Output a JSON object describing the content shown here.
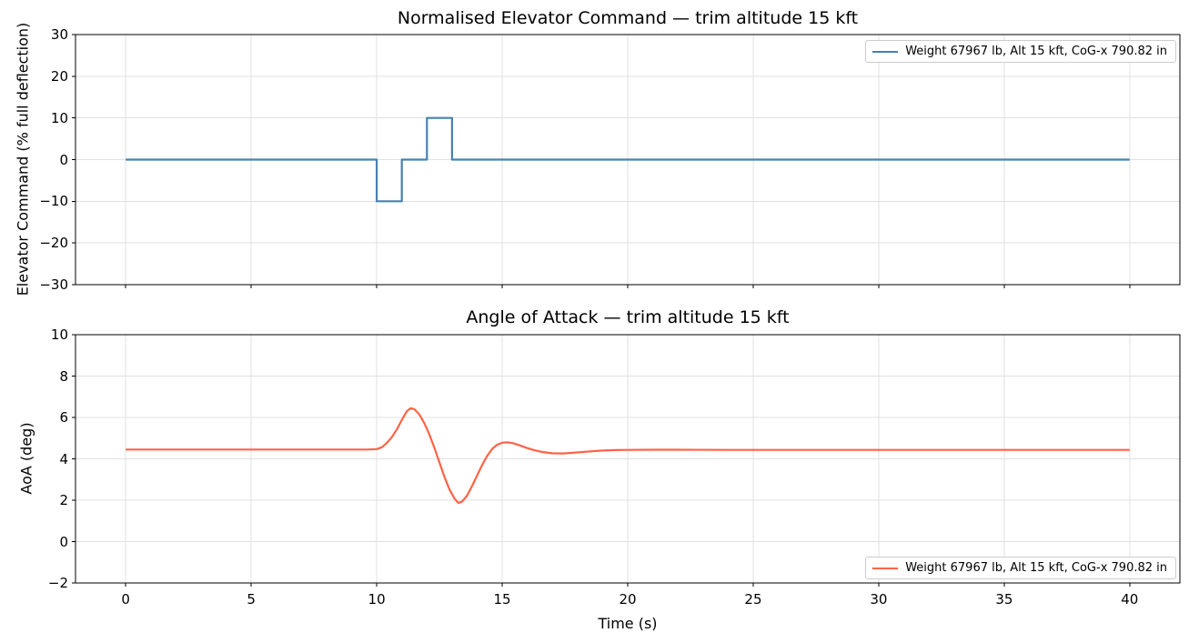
{
  "figure": {
    "background": "#ffffff",
    "grid_color": "#e0e0e0",
    "xlabel": "Time (s)"
  },
  "chart_data": [
    {
      "type": "line",
      "title": "Normalised Elevator Command — trim altitude 15 kft",
      "xlabel": "",
      "ylabel": "Elevator Command (% full deflection)",
      "xlim": [
        -2,
        42
      ],
      "ylim": [
        -30,
        30
      ],
      "xticks": [
        0,
        5,
        10,
        15,
        20,
        25,
        30,
        35,
        40
      ],
      "show_xtick_labels": false,
      "yticks": [
        -30,
        -20,
        -10,
        0,
        10,
        20,
        30
      ],
      "grid": true,
      "legend": {
        "position": "top-right",
        "entries": [
          {
            "label": "Weight 67967 lb, Alt 15 kft, CoG-x 790.82 in",
            "color": "#4682b4"
          }
        ]
      },
      "series": [
        {
          "name": "Weight 67967 lb, Alt 15 kft, CoG-x 790.82 in",
          "color": "#4682b4",
          "points": [
            [
              0,
              0
            ],
            [
              10,
              0
            ],
            [
              10,
              -10
            ],
            [
              11,
              -10
            ],
            [
              11,
              0
            ],
            [
              12,
              0
            ],
            [
              12,
              10
            ],
            [
              13,
              10
            ],
            [
              13,
              0
            ],
            [
              40,
              0
            ]
          ]
        }
      ]
    },
    {
      "type": "line",
      "title": "Angle of Attack — trim altitude 15 kft",
      "xlabel": "Time (s)",
      "ylabel": "AoA (deg)",
      "xlim": [
        -2,
        42
      ],
      "ylim": [
        -2,
        10
      ],
      "xticks": [
        0,
        5,
        10,
        15,
        20,
        25,
        30,
        35,
        40
      ],
      "show_xtick_labels": true,
      "yticks": [
        -2,
        0,
        2,
        4,
        6,
        8,
        10
      ],
      "grid": true,
      "legend": {
        "position": "bottom-right",
        "entries": [
          {
            "label": "Weight 67967 lb, Alt 15 kft, CoG-x 790.82 in",
            "color": "#ff6347"
          }
        ]
      },
      "series": [
        {
          "name": "Weight 67967 lb, Alt 15 kft, CoG-x 790.82 in",
          "color": "#ff6347",
          "points": [
            [
              0,
              4.45
            ],
            [
              2,
              4.45
            ],
            [
              4,
              4.45
            ],
            [
              6,
              4.45
            ],
            [
              8,
              4.45
            ],
            [
              9.6,
              4.45
            ],
            [
              10,
              4.47
            ],
            [
              10.2,
              4.56
            ],
            [
              10.4,
              4.76
            ],
            [
              10.6,
              5.04
            ],
            [
              10.8,
              5.42
            ],
            [
              11,
              5.88
            ],
            [
              11.2,
              6.3
            ],
            [
              11.35,
              6.45
            ],
            [
              11.5,
              6.4
            ],
            [
              11.7,
              6.14
            ],
            [
              11.9,
              5.72
            ],
            [
              12.1,
              5.18
            ],
            [
              12.3,
              4.52
            ],
            [
              12.5,
              3.82
            ],
            [
              12.7,
              3.12
            ],
            [
              12.9,
              2.52
            ],
            [
              13.1,
              2.08
            ],
            [
              13.25,
              1.87
            ],
            [
              13.4,
              1.93
            ],
            [
              13.6,
              2.22
            ],
            [
              13.8,
              2.68
            ],
            [
              14,
              3.2
            ],
            [
              14.2,
              3.7
            ],
            [
              14.4,
              4.14
            ],
            [
              14.6,
              4.48
            ],
            [
              14.8,
              4.68
            ],
            [
              15,
              4.78
            ],
            [
              15.2,
              4.8
            ],
            [
              15.45,
              4.75
            ],
            [
              15.7,
              4.65
            ],
            [
              16,
              4.52
            ],
            [
              16.3,
              4.41
            ],
            [
              16.6,
              4.33
            ],
            [
              17,
              4.27
            ],
            [
              17.4,
              4.26
            ],
            [
              17.8,
              4.29
            ],
            [
              18.2,
              4.33
            ],
            [
              18.6,
              4.37
            ],
            [
              19,
              4.4
            ],
            [
              19.5,
              4.42
            ],
            [
              20,
              4.43
            ],
            [
              21,
              4.44
            ],
            [
              22,
              4.44
            ],
            [
              24,
              4.43
            ],
            [
              26,
              4.43
            ],
            [
              28,
              4.43
            ],
            [
              30,
              4.43
            ],
            [
              32,
              4.43
            ],
            [
              34,
              4.43
            ],
            [
              36,
              4.43
            ],
            [
              38,
              4.43
            ],
            [
              40,
              4.43
            ]
          ]
        }
      ]
    }
  ]
}
